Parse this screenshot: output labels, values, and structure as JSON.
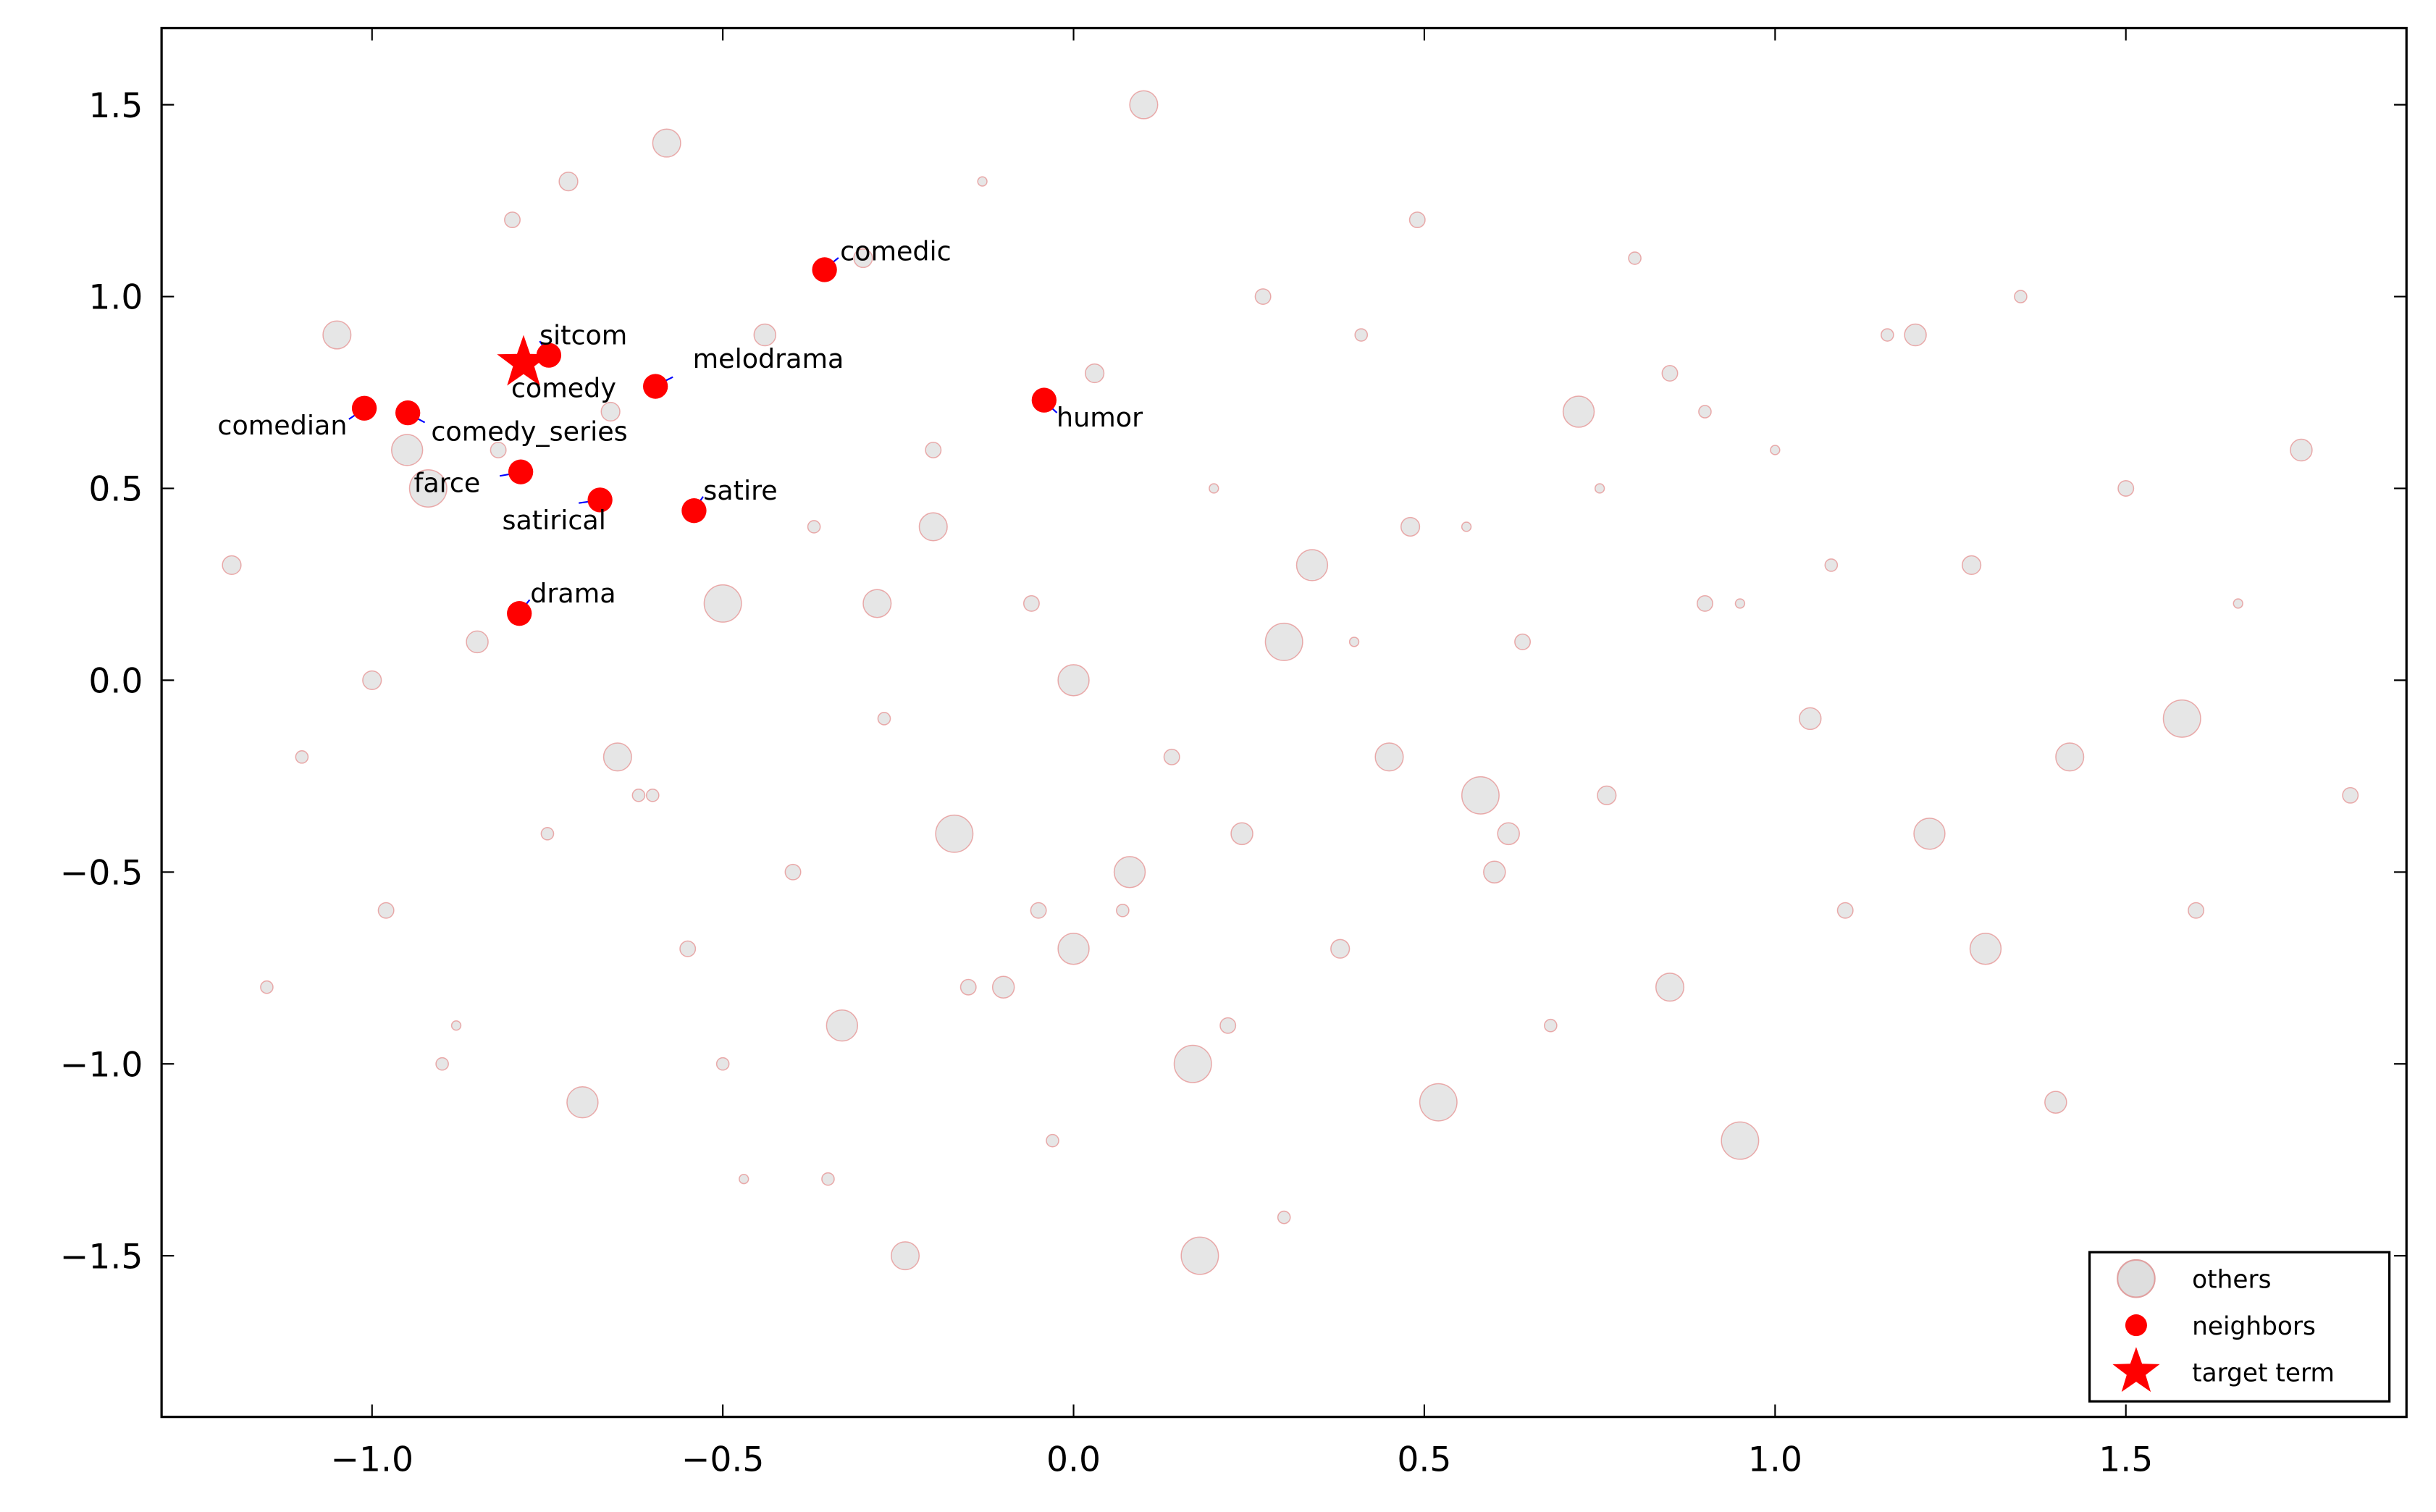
{
  "chart_data": {
    "type": "scatter",
    "xlim": [
      -1.3,
      1.9
    ],
    "ylim": [
      -1.92,
      1.7
    ],
    "xticks": [
      {
        "value": -1.0,
        "label": "−1.0"
      },
      {
        "value": -0.5,
        "label": "−0.5"
      },
      {
        "value": 0.0,
        "label": "0.0"
      },
      {
        "value": 0.5,
        "label": "0.5"
      },
      {
        "value": 1.0,
        "label": "1.0"
      },
      {
        "value": 1.5,
        "label": "1.5"
      }
    ],
    "yticks": [
      {
        "value": -1.5,
        "label": "−1.5"
      },
      {
        "value": -1.0,
        "label": "−1.0"
      },
      {
        "value": -0.5,
        "label": "−0.5"
      },
      {
        "value": 0.0,
        "label": "0.0"
      },
      {
        "value": 0.5,
        "label": "0.5"
      },
      {
        "value": 1.0,
        "label": "1.0"
      },
      {
        "value": 1.5,
        "label": "1.5"
      }
    ],
    "legend": "lower right",
    "series": [
      {
        "name": "others",
        "color": "#c8c8c8",
        "x": [
          -1.2,
          -1.1,
          -1.05,
          -0.98,
          -0.92,
          -0.88,
          -0.85,
          -0.8,
          -0.75,
          -0.7,
          -0.66,
          -0.62,
          -0.58,
          -0.55,
          -0.5,
          -0.47,
          -0.44,
          -0.4,
          -0.37,
          -0.33,
          -0.3,
          -0.27,
          -0.24,
          -0.2,
          -0.17,
          -0.13,
          -0.1,
          -0.06,
          -0.03,
          0.0,
          0.03,
          0.07,
          0.1,
          0.14,
          0.17,
          0.2,
          0.24,
          0.27,
          0.3,
          0.34,
          0.38,
          0.41,
          0.45,
          0.49,
          0.52,
          0.56,
          0.6,
          0.64,
          0.68,
          0.72,
          0.76,
          0.8,
          0.85,
          0.9,
          0.95,
          1.0,
          1.05,
          1.1,
          1.16,
          1.22,
          1.28,
          1.35,
          1.42,
          1.5,
          1.58,
          1.66,
          1.75,
          1.82,
          -1.15,
          -0.95,
          -0.72,
          -0.5,
          -0.28,
          -0.05,
          0.18,
          0.4,
          0.62,
          0.85,
          1.08,
          1.3,
          -1.0,
          -0.6,
          -0.2,
          0.22,
          0.58,
          0.95,
          1.4,
          -0.82,
          -0.35,
          0.08,
          0.48,
          0.9,
          -0.65,
          -0.15,
          0.3,
          0.75,
          1.2,
          1.6,
          -0.9,
          0.0
        ],
        "y": [
          0.3,
          -0.2,
          0.9,
          -0.6,
          0.5,
          -0.9,
          0.1,
          1.2,
          -0.4,
          -1.1,
          0.7,
          -0.3,
          1.4,
          -0.7,
          0.2,
          -1.3,
          0.9,
          -0.5,
          0.4,
          -0.9,
          1.1,
          -0.1,
          -1.5,
          0.6,
          -0.4,
          1.3,
          -0.8,
          0.2,
          -1.2,
          0.0,
          0.8,
          -0.6,
          1.5,
          -0.2,
          -1.0,
          0.5,
          -0.4,
          1.0,
          -1.4,
          0.3,
          -0.7,
          0.9,
          -0.2,
          1.2,
          -1.1,
          0.4,
          -0.5,
          0.1,
          -0.9,
          0.7,
          -0.3,
          1.1,
          -0.8,
          0.2,
          -1.2,
          0.6,
          -0.1,
          -0.6,
          0.9,
          -0.4,
          0.3,
          1.0,
          -0.2,
          0.5,
          -0.1,
          0.2,
          0.6,
          -0.3,
          -0.8,
          0.6,
          1.3,
          -1.0,
          0.2,
          -0.6,
          -1.5,
          0.1,
          -0.4,
          0.8,
          0.3,
          -0.7,
          0.0,
          -0.3,
          0.4,
          -0.9,
          -0.3,
          0.2,
          -1.1,
          0.6,
          -1.3,
          -0.5,
          0.4,
          0.7,
          -0.2,
          -0.8,
          0.1,
          0.5,
          0.9,
          -0.6,
          -1.0,
          -0.7
        ],
        "sizes": [
          6,
          4,
          9,
          5,
          12,
          3,
          7,
          5,
          4,
          10,
          6,
          4,
          9,
          5,
          12,
          3,
          7,
          5,
          4,
          10,
          6,
          4,
          9,
          5,
          12,
          3,
          7,
          5,
          4,
          10,
          6,
          4,
          9,
          5,
          12,
          3,
          7,
          5,
          4,
          10,
          6,
          4,
          9,
          5,
          12,
          3,
          7,
          5,
          4,
          10,
          6,
          4,
          9,
          5,
          12,
          3,
          7,
          5,
          4,
          10,
          6,
          4,
          9,
          5,
          12,
          3,
          7,
          5,
          4,
          10,
          6,
          4,
          9,
          5,
          12,
          3,
          7,
          5,
          4,
          10,
          6,
          4,
          9,
          5,
          12,
          3,
          7,
          5,
          4,
          10,
          6,
          4,
          9,
          5,
          12,
          3,
          7,
          5,
          4,
          10
        ]
      },
      {
        "name": "neighbors",
        "color": "#ff0000",
        "labels": [
          "comedic",
          "sitcom",
          "melodrama",
          "humor",
          "comedian",
          "comedy_series",
          "farce",
          "satirical",
          "satire",
          "drama"
        ],
        "x": [
          -0.355,
          -0.748,
          -0.596,
          -0.042,
          -1.011,
          -0.949,
          -0.788,
          -0.675,
          -0.541,
          -0.79
        ],
        "y": [
          1.07,
          0.847,
          0.766,
          0.73,
          0.709,
          0.697,
          0.543,
          0.47,
          0.442,
          0.174
        ]
      },
      {
        "name": "target term",
        "color": "#ff0000",
        "labels": [
          "comedy"
        ],
        "x": [
          -0.784
        ],
        "y": [
          0.827
        ]
      }
    ]
  }
}
